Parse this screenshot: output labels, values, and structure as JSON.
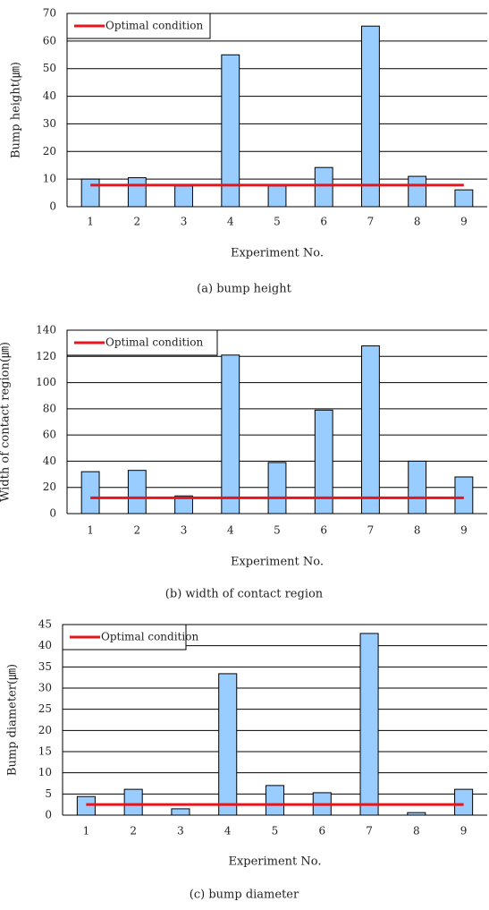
{
  "chart_data": [
    {
      "type": "bar",
      "caption": "(a) bump height",
      "ylabel": "Bump height(㎛)",
      "xlabel": "Experiment No.",
      "categories": [
        "1",
        "2",
        "3",
        "4",
        "5",
        "6",
        "7",
        "8",
        "9"
      ],
      "values": [
        10,
        10.5,
        7.5,
        55,
        7.5,
        14.2,
        65.4,
        11,
        6.1
      ],
      "color": "#99ccff",
      "reference": {
        "name": "Optimal condition",
        "value": 7.8,
        "color": "#e8141b"
      },
      "ylim": [
        0,
        70
      ],
      "yticks": [
        0,
        10,
        20,
        30,
        40,
        50,
        60,
        70
      ],
      "grid": true,
      "legend": "top-left"
    },
    {
      "type": "bar",
      "caption": "(b) width of contact region",
      "ylabel": "Width of contact region(㎛)",
      "xlabel": "Experiment No.",
      "categories": [
        "1",
        "2",
        "3",
        "4",
        "5",
        "6",
        "7",
        "8",
        "9"
      ],
      "values": [
        32,
        33,
        13.5,
        121,
        39,
        79,
        128,
        40,
        28
      ],
      "color": "#99ccff",
      "reference": {
        "name": "Optimal condition",
        "value": 12,
        "color": "#e8141b"
      },
      "ylim": [
        0,
        140
      ],
      "yticks": [
        0,
        20,
        40,
        60,
        80,
        100,
        120,
        140
      ],
      "grid": true,
      "legend": "top-left"
    },
    {
      "type": "bar",
      "caption": "(c) bump diameter",
      "ylabel": "Bump diameter(㎛)",
      "xlabel": "Experiment No.",
      "categories": [
        "1",
        "2",
        "3",
        "4",
        "5",
        "6",
        "7",
        "8",
        "9"
      ],
      "values": [
        4.4,
        6.1,
        1.5,
        33.4,
        7,
        5.3,
        42.9,
        0.6,
        6.1
      ],
      "color": "#99ccff",
      "reference": {
        "name": "Optimal condition",
        "value": 2.5,
        "color": "#e8141b"
      },
      "ylim": [
        0,
        45
      ],
      "yticks": [
        0,
        5,
        10,
        15,
        20,
        25,
        30,
        35,
        40,
        45
      ],
      "grid": true,
      "legend": "top-left"
    }
  ]
}
